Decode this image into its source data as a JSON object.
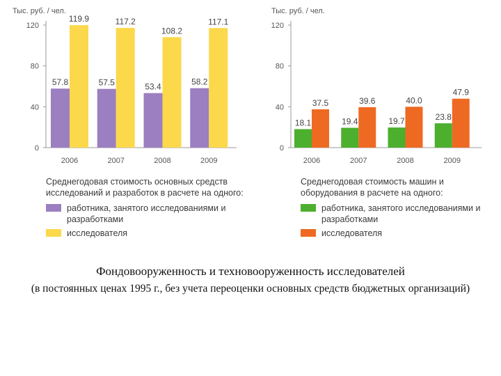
{
  "charts": [
    {
      "unit_label": "Тыс. руб. / чел.",
      "legend_title": "Среднегодовая стоимость основных средств исследований и разработок в расчете на одного:",
      "series_labels": [
        "работника, занятого исследованиями и разработками",
        "исследователя"
      ]
    },
    {
      "unit_label": "Тыс. руб. / чел.",
      "legend_title": "Среднегодовая стоимость машин и оборудования в расчете на одного:",
      "series_labels": [
        "работника, занятого исследованиями и разработками",
        "исследователя"
      ]
    }
  ],
  "caption": {
    "title": "Фондовооруженность и техновооруженность исследователей",
    "subtitle": "(в постоянных ценах 1995 г., без учета переоценки основных средств бюджетных организаций)"
  },
  "chart_data": [
    {
      "type": "bar",
      "categories": [
        "2006",
        "2007",
        "2008",
        "2009"
      ],
      "series": [
        {
          "name": "работника, занятого исследованиями и разработками",
          "values": [
            57.8,
            57.5,
            53.4,
            58.2
          ],
          "color": "#9b7fc0"
        },
        {
          "name": "исследователя",
          "values": [
            119.9,
            117.2,
            108.2,
            117.1
          ],
          "color": "#fcd84b"
        }
      ],
      "ylabel": "Тыс. руб. / чел.",
      "ylim": [
        0,
        120
      ],
      "yticks": [
        0,
        40,
        80,
        120
      ],
      "grid": false,
      "data_labels": true
    },
    {
      "type": "bar",
      "categories": [
        "2006",
        "2007",
        "2008",
        "2009"
      ],
      "series": [
        {
          "name": "работника, занятого исследованиями и разработками",
          "values": [
            18.1,
            19.4,
            19.7,
            23.8
          ],
          "color": "#4caf2e"
        },
        {
          "name": "исследователя",
          "values": [
            37.5,
            39.6,
            40.0,
            47.9
          ],
          "color": "#ee6a22"
        }
      ],
      "ylabel": "Тыс. руб. / чел.",
      "ylim": [
        0,
        120
      ],
      "yticks": [
        0,
        40,
        80,
        120
      ],
      "grid": false,
      "data_labels": true
    }
  ]
}
